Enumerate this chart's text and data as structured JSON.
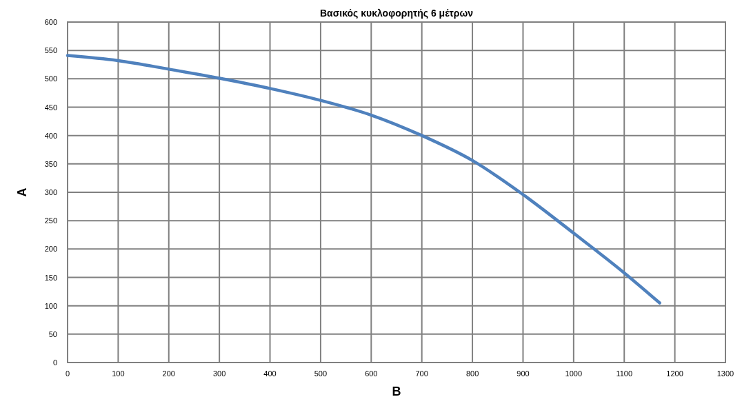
{
  "chart_data": {
    "type": "line",
    "title": "Βασικός κυκλοφορητής 6 μέτρων",
    "xlabel": "B",
    "ylabel": "A",
    "x": [
      0,
      100,
      200,
      300,
      400,
      500,
      600,
      700,
      800,
      900,
      1000,
      1100,
      1170
    ],
    "series": [
      {
        "color": "#4f81bd",
        "values": [
          541,
          532,
          517,
          501,
          483,
          462,
          436,
          400,
          356,
          296,
          228,
          158,
          105
        ]
      }
    ],
    "xlim": [
      0,
      1300
    ],
    "xticks": [
      0,
      100,
      200,
      300,
      400,
      500,
      600,
      700,
      800,
      900,
      1000,
      1100,
      1200,
      1300
    ],
    "ylim": [
      0,
      600
    ],
    "yticks": [
      0,
      50,
      100,
      150,
      200,
      250,
      300,
      350,
      400,
      450,
      500,
      550,
      600
    ],
    "grid": true,
    "marker": "none",
    "line_style": "solid"
  }
}
